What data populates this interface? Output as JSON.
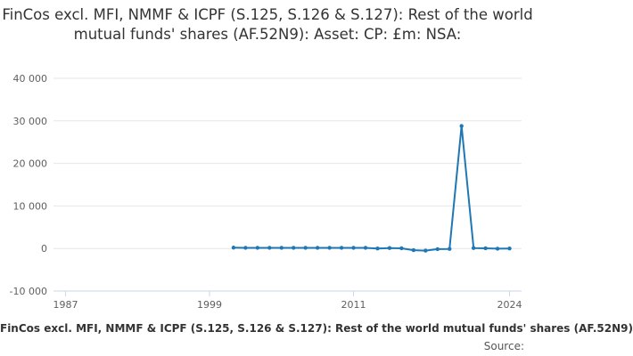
{
  "chart_data": {
    "type": "line",
    "title": "FinCos excl. MFI, NMMF & ICPF (S.125, S.126 & S.127): Rest of the world mutual funds' shares (AF.52N9): Asset: CP: £m: NSA:",
    "xlabel": "FinCos excl. MFI, NMMF & ICPF (S.125, S.126 & S.127): Rest of the world mutual funds' shares (AF.52N9)",
    "ylabel": "",
    "xlim": [
      1986,
      2025
    ],
    "ylim": [
      -10000,
      40000
    ],
    "x_ticks": [
      "1987",
      "1999",
      "2011",
      "2024"
    ],
    "y_ticks": [
      "-10 000",
      "0",
      "10 000",
      "20 000",
      "30 000",
      "40 000"
    ],
    "grid": "horizontal",
    "series": [
      {
        "color": "#1f77b4",
        "x": [
          2001,
          2002,
          2003,
          2004,
          2005,
          2006,
          2007,
          2008,
          2009,
          2010,
          2011,
          2012,
          2013,
          2014,
          2015,
          2016,
          2017,
          2018,
          2019,
          2020,
          2021,
          2022,
          2023,
          2024
        ],
        "values": [
          200,
          150,
          150,
          150,
          150,
          150,
          150,
          150,
          150,
          150,
          150,
          150,
          0,
          100,
          50,
          -400,
          -500,
          -150,
          -100,
          28800,
          100,
          50,
          -50,
          0
        ]
      }
    ]
  },
  "source_label": "Source:"
}
